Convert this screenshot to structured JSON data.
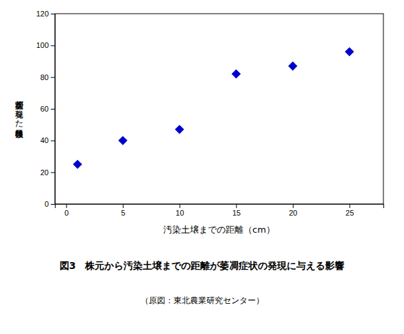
{
  "chart_data": {
    "type": "scatter",
    "title": "図3　株元から汚染土壌までの距離が萎凋症状の発現に与える影響",
    "subtitle": "（原図：東北農業研究センター）",
    "x_label": "汚染土壌までの距離（cm）",
    "y_label": "萎凋症状が発現した移植後日数",
    "x": [
      1,
      5,
      10,
      15,
      20,
      25
    ],
    "values": [
      25,
      40,
      47,
      82,
      87,
      96
    ],
    "color": "#0000CC",
    "marker": "diamond",
    "xlim": [
      -1,
      28
    ],
    "ylim": [
      0,
      120
    ],
    "xticks": [
      0,
      5,
      10,
      15,
      20,
      25
    ],
    "yticks": [
      0,
      20,
      40,
      60,
      80,
      100,
      120
    ],
    "grid": false
  }
}
